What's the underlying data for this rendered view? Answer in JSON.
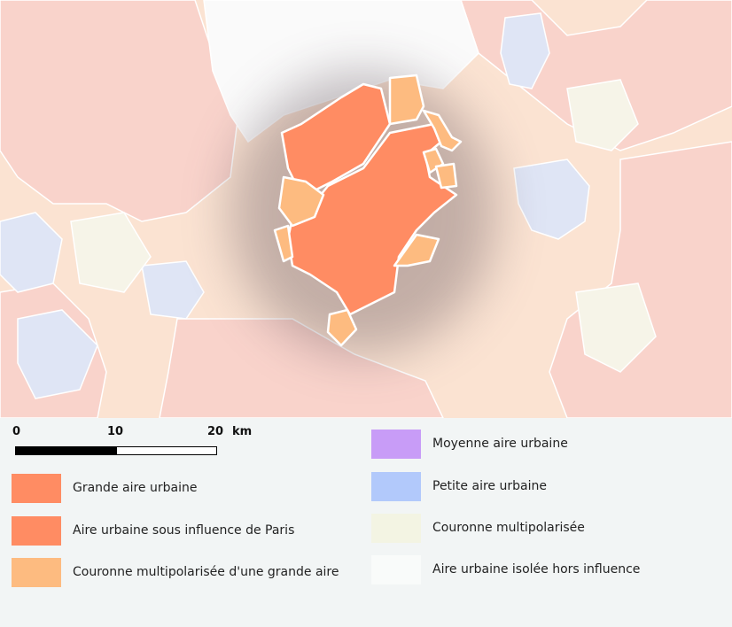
{
  "scale": {
    "ticks": [
      "0",
      "10",
      "20"
    ],
    "unit": "km"
  },
  "legend": [
    {
      "label": "Grande aire urbaine",
      "color": "#ff8c63"
    },
    {
      "label": "Aire urbaine sous influence de Paris",
      "color": "#ff8c63"
    },
    {
      "label": "Couronne multipolarisée d'une grande aire",
      "color": "#fdbb80"
    },
    {
      "label": "Moyenne aire urbaine",
      "color": "#c89cf7"
    },
    {
      "label": "Petite aire urbaine",
      "color": "#b2c9fb"
    },
    {
      "label": "Couronne multipolarisée",
      "color": "#f3f4e3"
    },
    {
      "label": "Aire urbaine isolée hors influence",
      "color": "#f9fbfa"
    }
  ],
  "colors": {
    "highlight_border": "#ffffff",
    "pale_red": "#f9d3cb",
    "pale_orange": "#fbe3d2",
    "pale_blue": "#dfe5f5",
    "pale_cream": "#f6f4e8"
  }
}
